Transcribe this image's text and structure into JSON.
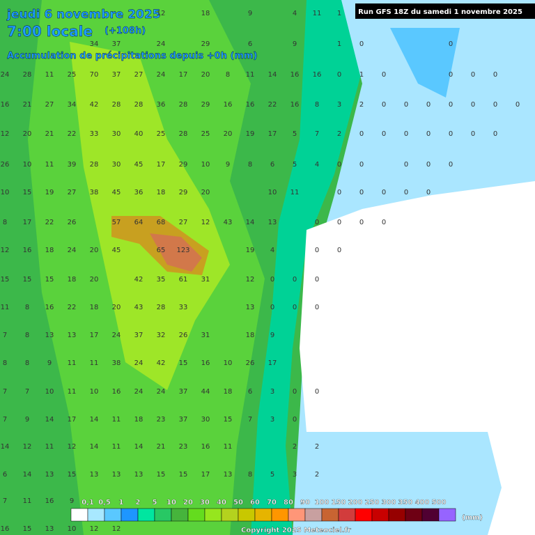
{
  "header": {
    "date": "jeudi 6 novembre 2025",
    "time": "7:00 locale",
    "lead": "(+108h)",
    "subtitle": "Accumulation de précipitations depuis +0h (mm)",
    "run": "Run GFS 18Z du samedi 1 novembre 2025"
  },
  "grid": {
    "rows": [
      [
        null,
        null,
        null,
        null,
        null,
        null,
        null,
        12,
        null,
        18,
        null,
        9,
        null,
        4,
        11,
        1,
        null,
        null,
        null,
        null,
        null,
        null,
        null,
        null
      ],
      [
        null,
        null,
        null,
        null,
        34,
        37,
        null,
        24,
        null,
        29,
        null,
        6,
        null,
        9,
        null,
        1,
        0,
        null,
        null,
        null,
        0,
        null,
        null,
        null
      ],
      [
        24,
        28,
        11,
        25,
        70,
        37,
        27,
        24,
        17,
        20,
        8,
        11,
        14,
        16,
        16,
        0,
        1,
        0,
        null,
        null,
        0,
        0,
        0,
        null
      ],
      [
        16,
        21,
        27,
        34,
        42,
        28,
        28,
        36,
        28,
        29,
        16,
        16,
        22,
        16,
        8,
        3,
        2,
        0,
        0,
        0,
        0,
        0,
        0,
        0
      ],
      [
        12,
        20,
        21,
        22,
        33,
        30,
        40,
        25,
        28,
        25,
        20,
        19,
        17,
        5,
        7,
        2,
        0,
        0,
        0,
        0,
        0,
        0,
        0,
        null
      ],
      [
        26,
        10,
        11,
        39,
        28,
        30,
        45,
        17,
        29,
        10,
        9,
        8,
        6,
        5,
        4,
        0,
        0,
        null,
        0,
        0,
        0,
        null,
        null,
        null
      ],
      [
        10,
        15,
        19,
        27,
        38,
        45,
        36,
        18,
        29,
        20,
        null,
        null,
        10,
        11,
        null,
        0,
        0,
        0,
        0,
        0,
        null,
        null,
        null,
        null
      ],
      [
        8,
        17,
        22,
        26,
        null,
        57,
        64,
        68,
        27,
        12,
        43,
        14,
        13,
        null,
        0,
        0,
        0,
        0,
        null,
        null,
        null,
        null,
        null,
        null
      ],
      [
        12,
        16,
        18,
        24,
        20,
        45,
        null,
        65,
        123,
        null,
        null,
        19,
        4,
        null,
        0,
        0,
        null,
        null,
        null,
        null,
        null,
        null,
        null,
        null
      ],
      [
        15,
        15,
        15,
        18,
        20,
        null,
        42,
        35,
        61,
        31,
        null,
        12,
        0,
        0,
        0,
        null,
        null,
        null,
        null,
        null,
        null,
        null,
        null,
        null
      ],
      [
        11,
        8,
        16,
        22,
        18,
        20,
        43,
        28,
        33,
        null,
        null,
        13,
        0,
        0,
        0,
        null,
        null,
        null,
        null,
        null,
        null,
        null,
        null,
        null
      ],
      [
        7,
        8,
        13,
        13,
        17,
        24,
        37,
        32,
        26,
        31,
        null,
        18,
        9,
        null,
        null,
        null,
        null,
        null,
        null,
        null,
        null,
        null,
        null,
        null
      ],
      [
        8,
        8,
        9,
        11,
        11,
        38,
        24,
        42,
        15,
        16,
        10,
        26,
        17,
        null,
        null,
        null,
        null,
        null,
        null,
        null,
        null,
        null,
        null,
        null
      ],
      [
        7,
        7,
        10,
        11,
        10,
        16,
        24,
        24,
        37,
        44,
        18,
        6,
        3,
        0,
        0,
        null,
        null,
        null,
        null,
        null,
        null,
        null,
        null,
        null
      ],
      [
        7,
        9,
        14,
        17,
        14,
        11,
        18,
        23,
        37,
        30,
        15,
        7,
        3,
        0,
        null,
        null,
        null,
        null,
        null,
        null,
        null,
        null,
        null,
        null
      ],
      [
        14,
        12,
        11,
        12,
        14,
        11,
        14,
        21,
        23,
        16,
        11,
        null,
        null,
        2,
        2,
        null,
        null,
        null,
        null,
        null,
        null,
        null,
        null,
        null
      ],
      [
        6,
        14,
        13,
        15,
        13,
        13,
        13,
        15,
        15,
        17,
        13,
        8,
        5,
        3,
        2,
        null,
        null,
        null,
        null,
        null,
        null,
        null,
        null,
        null
      ],
      [
        7,
        11,
        16,
        9,
        null,
        null,
        null,
        null,
        null,
        null,
        null,
        null,
        null,
        null,
        null,
        null,
        null,
        null,
        null,
        null,
        null,
        null,
        null,
        null
      ],
      [
        16,
        15,
        13,
        10,
        12,
        12,
        null,
        null,
        null,
        null,
        null,
        null,
        null,
        null,
        null,
        null,
        null,
        null,
        null,
        null,
        null,
        null,
        null,
        null
      ]
    ]
  },
  "legend": {
    "labels": [
      "0,1",
      "0,5",
      "1",
      "2",
      "5",
      "10",
      "20",
      "30",
      "40",
      "50",
      "60",
      "70",
      "80",
      "90",
      "100",
      "150",
      "200",
      "250",
      "300",
      "350",
      "400",
      "500"
    ],
    "colors": [
      "#ffffff",
      "#a8e8ff",
      "#5ac8ff",
      "#1e96ff",
      "#00e6a0",
      "#28c864",
      "#46b43c",
      "#64dc1e",
      "#96e61e",
      "#b4d21e",
      "#c8c800",
      "#e6b400",
      "#ff9600",
      "#ff9678",
      "#c8a0a0",
      "#c86432",
      "#d23c3c",
      "#ff0000",
      "#c80000",
      "#960000",
      "#6e0014",
      "#500032",
      "#9664ff"
    ],
    "unit": "(mm)"
  },
  "footer": {
    "copyright": "Copyright 2025 Meteociel.fr"
  }
}
